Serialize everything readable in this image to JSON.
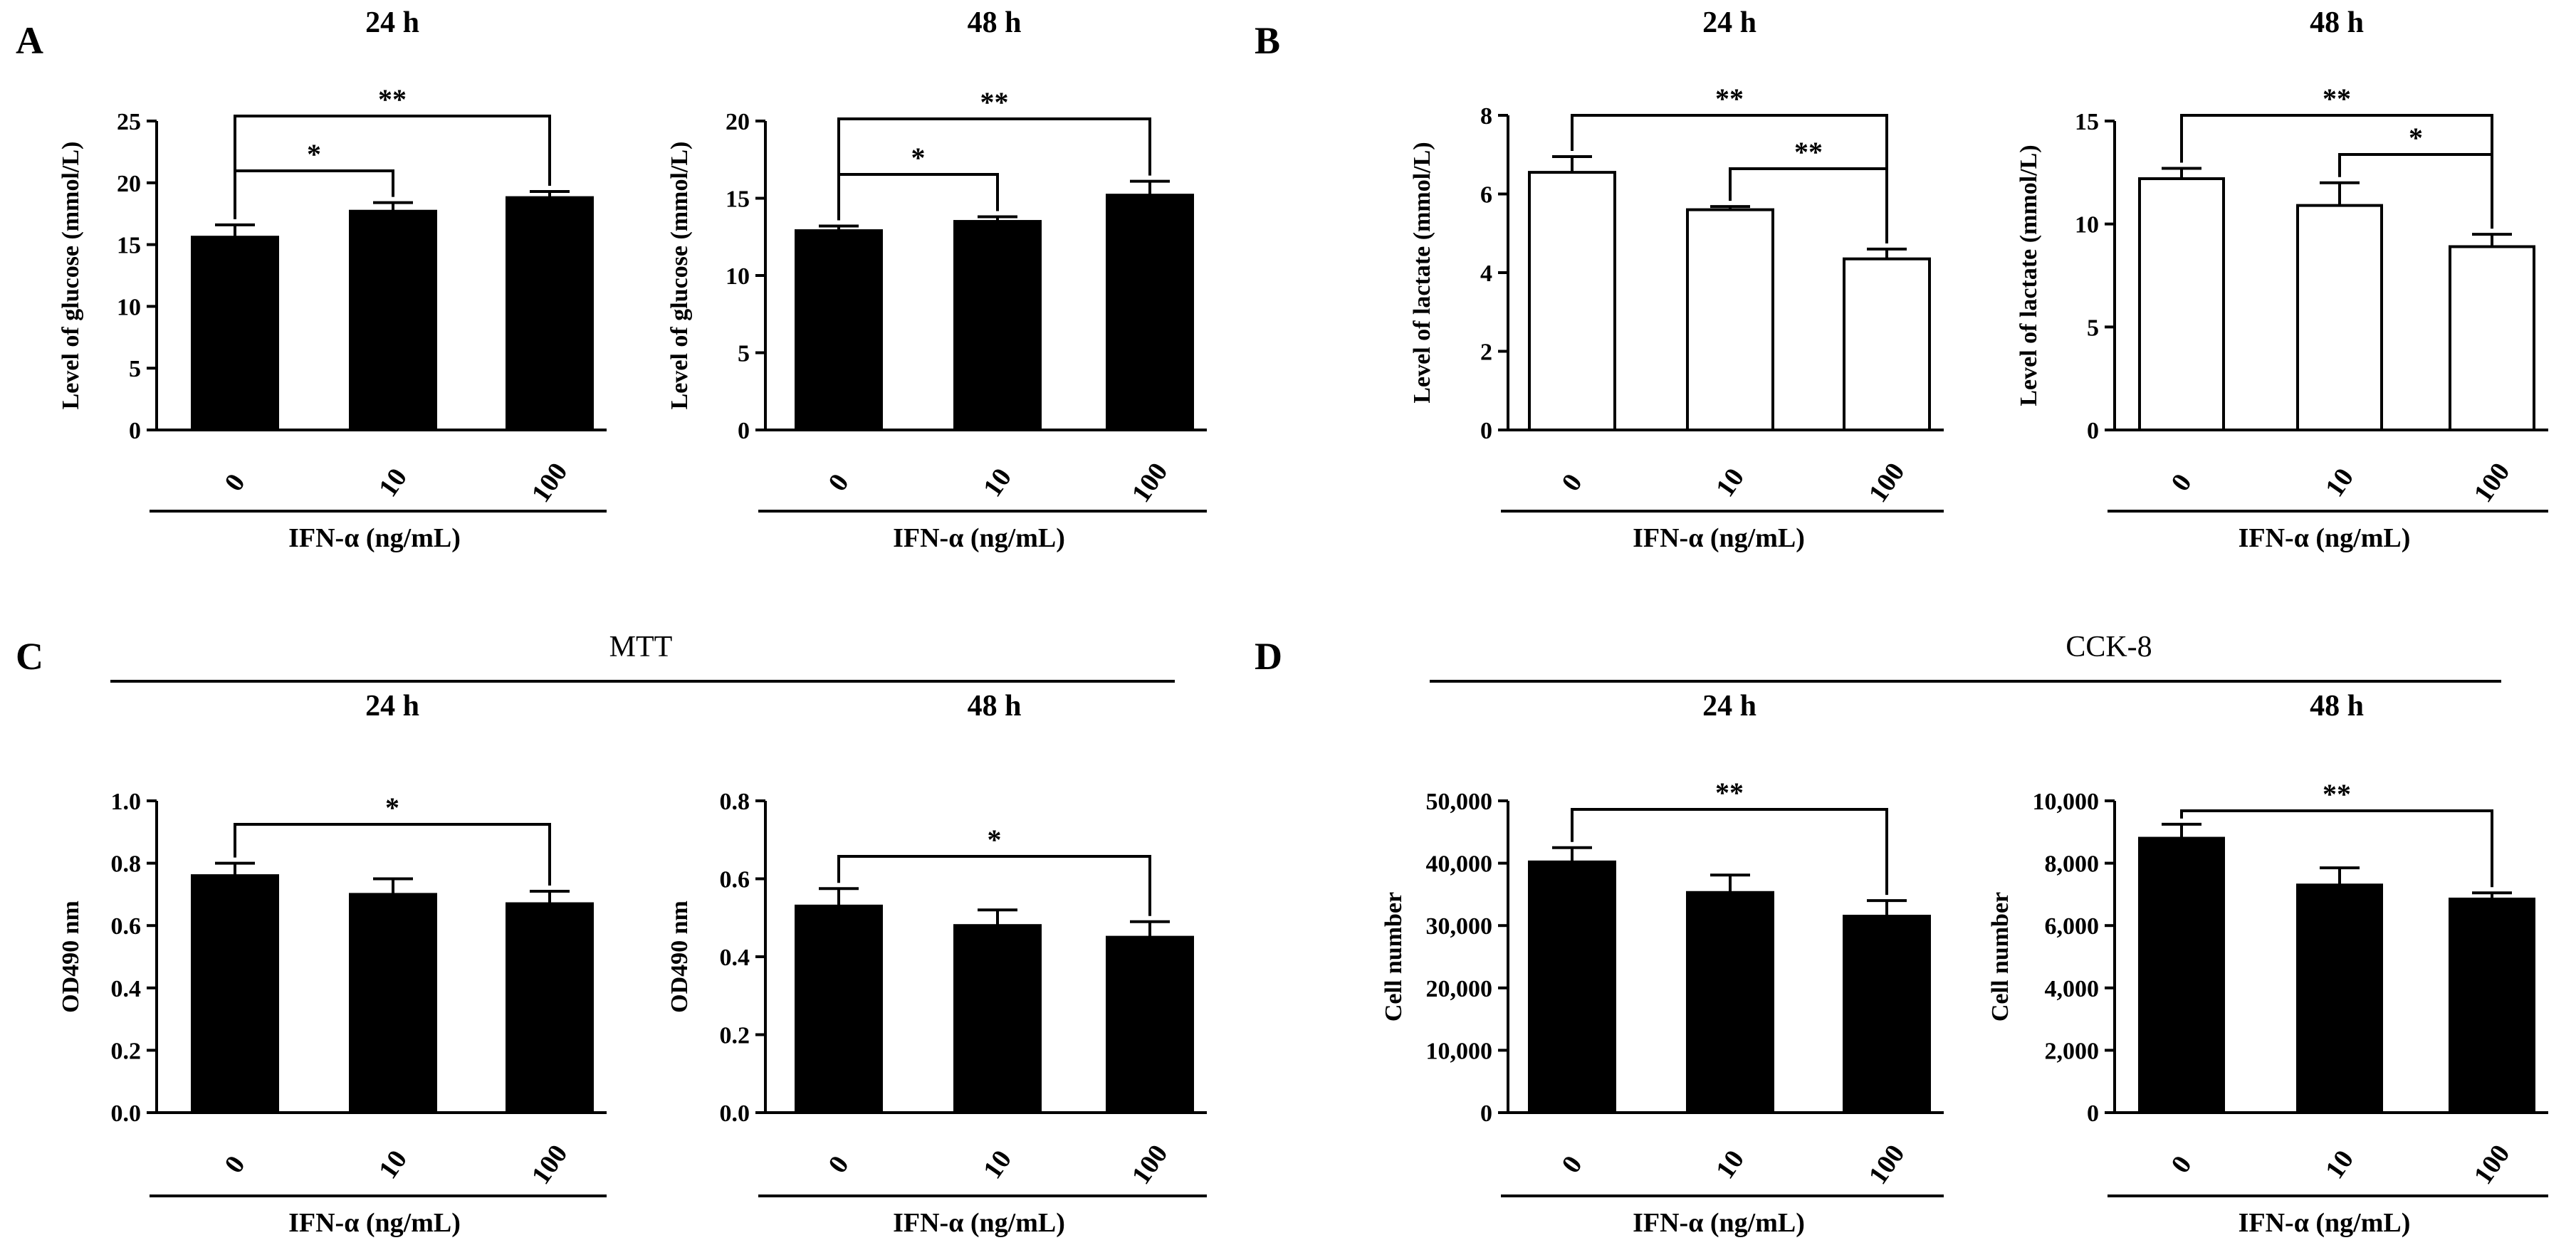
{
  "panel_labels": {
    "A": "A",
    "B": "B",
    "C": "C",
    "D": "D"
  },
  "group_titles": {
    "C": "MTT",
    "D": "CCK-8"
  },
  "chart_data": [
    {
      "id": "A-24",
      "panel": "A",
      "type": "bar",
      "title": "24 h",
      "categories": [
        "0",
        "10",
        "100"
      ],
      "values": [
        15.6,
        17.7,
        18.8
      ],
      "errors": [
        1.0,
        0.7,
        0.5
      ],
      "fill": "#000000",
      "ylabel": "Level of glucose (mmol/L)",
      "xlabel": "IFN-α (ng/mL)",
      "ylim": [
        0,
        25
      ],
      "yticks": [
        0,
        5,
        10,
        15,
        20,
        25
      ],
      "ytick_labels": [
        "0",
        "5",
        "10",
        "15",
        "20",
        "25"
      ],
      "significance": [
        {
          "from": 0,
          "to": 2,
          "label": "**"
        },
        {
          "from": 0,
          "to": 1,
          "label": "*"
        }
      ]
    },
    {
      "id": "A-48",
      "panel": "A",
      "type": "bar",
      "title": "48 h",
      "categories": [
        "0",
        "10",
        "100"
      ],
      "values": [
        12.9,
        13.5,
        15.2
      ],
      "errors": [
        0.3,
        0.3,
        0.9
      ],
      "fill": "#000000",
      "ylabel": "Level of glucose (mmol/L)",
      "xlabel": "IFN-α (ng/mL)",
      "ylim": [
        0,
        20
      ],
      "yticks": [
        0,
        5,
        10,
        15,
        20
      ],
      "ytick_labels": [
        "0",
        "5",
        "10",
        "15",
        "20"
      ],
      "significance": [
        {
          "from": 0,
          "to": 2,
          "label": "**"
        },
        {
          "from": 0,
          "to": 1,
          "label": "*"
        }
      ]
    },
    {
      "id": "B-24",
      "panel": "B",
      "type": "bar",
      "title": "24 h",
      "categories": [
        "0",
        "10",
        "100"
      ],
      "values": [
        6.55,
        5.6,
        4.35
      ],
      "errors": [
        0.4,
        0.08,
        0.25
      ],
      "fill": "#ffffff",
      "ylabel": "Level of lactate (mmol/L)",
      "xlabel": "IFN-α (ng/mL)",
      "ylim": [
        0,
        8
      ],
      "yticks": [
        0,
        2,
        4,
        6,
        8
      ],
      "ytick_labels": [
        "0",
        "2",
        "4",
        "6",
        "8"
      ],
      "significance": [
        {
          "from": 0,
          "to": 2,
          "label": "**"
        },
        {
          "from": 1,
          "to": 2,
          "label": "**"
        }
      ]
    },
    {
      "id": "B-48",
      "panel": "B",
      "type": "bar",
      "title": "48 h",
      "categories": [
        "0",
        "10",
        "100"
      ],
      "values": [
        12.2,
        10.9,
        8.9
      ],
      "errors": [
        0.5,
        1.1,
        0.6
      ],
      "fill": "#ffffff",
      "ylabel": "Level of lactate (mmol/L)",
      "xlabel": "IFN-α (ng/mL)",
      "ylim": [
        0,
        15
      ],
      "yticks": [
        0,
        5,
        10,
        15
      ],
      "ytick_labels": [
        "0",
        "5",
        "10",
        "15"
      ],
      "significance": [
        {
          "from": 0,
          "to": 2,
          "label": "**"
        },
        {
          "from": 1,
          "to": 2,
          "label": "*"
        }
      ]
    },
    {
      "id": "C-24",
      "panel": "C",
      "type": "bar",
      "title": "24 h",
      "categories": [
        "0",
        "10",
        "100"
      ],
      "values": [
        0.76,
        0.7,
        0.67
      ],
      "errors": [
        0.04,
        0.05,
        0.04
      ],
      "fill": "#000000",
      "ylabel": "OD490 nm",
      "xlabel": "IFN-α (ng/mL)",
      "ylim": [
        0,
        1.0
      ],
      "yticks": [
        0,
        0.2,
        0.4,
        0.6,
        0.8,
        1.0
      ],
      "ytick_labels": [
        "0.0",
        "0.2",
        "0.4",
        "0.6",
        "0.8",
        "1.0"
      ],
      "significance": [
        {
          "from": 0,
          "to": 2,
          "label": "*"
        }
      ]
    },
    {
      "id": "C-48",
      "panel": "C",
      "type": "bar",
      "title": "48 h",
      "categories": [
        "0",
        "10",
        "100"
      ],
      "values": [
        0.53,
        0.48,
        0.45
      ],
      "errors": [
        0.045,
        0.04,
        0.04
      ],
      "fill": "#000000",
      "ylabel": "OD490 nm",
      "xlabel": "IFN-α (ng/mL)",
      "ylim": [
        0,
        0.8
      ],
      "yticks": [
        0,
        0.2,
        0.4,
        0.6,
        0.8
      ],
      "ytick_labels": [
        "0.0",
        "0.2",
        "0.4",
        "0.6",
        "0.8"
      ],
      "significance": [
        {
          "from": 0,
          "to": 2,
          "label": "*"
        }
      ]
    },
    {
      "id": "D-24",
      "panel": "D",
      "type": "bar",
      "title": "24 h",
      "categories": [
        "0",
        "10",
        "100"
      ],
      "values": [
        40200,
        35300,
        31500
      ],
      "errors": [
        2300,
        2800,
        2500
      ],
      "fill": "#000000",
      "ylabel": "Cell number",
      "xlabel": "IFN-α (ng/mL)",
      "ylim": [
        0,
        50000
      ],
      "yticks": [
        0,
        10000,
        20000,
        30000,
        40000,
        50000
      ],
      "ytick_labels": [
        "0",
        "10,000",
        "20,000",
        "30,000",
        "40,000",
        "50,000"
      ],
      "significance": [
        {
          "from": 0,
          "to": 2,
          "label": "**"
        }
      ]
    },
    {
      "id": "D-48",
      "panel": "D",
      "type": "bar",
      "title": "48 h",
      "categories": [
        "0",
        "10",
        "100"
      ],
      "values": [
        8800,
        7300,
        6850
      ],
      "errors": [
        450,
        550,
        200
      ],
      "fill": "#000000",
      "ylabel": "Cell number",
      "xlabel": "IFN-α (ng/mL)",
      "ylim": [
        0,
        10000
      ],
      "yticks": [
        0,
        2000,
        4000,
        6000,
        8000,
        10000
      ],
      "ytick_labels": [
        "0",
        "2,000",
        "4,000",
        "6,000",
        "8,000",
        "10,000"
      ],
      "significance": [
        {
          "from": 0,
          "to": 2,
          "label": "**"
        }
      ]
    }
  ]
}
